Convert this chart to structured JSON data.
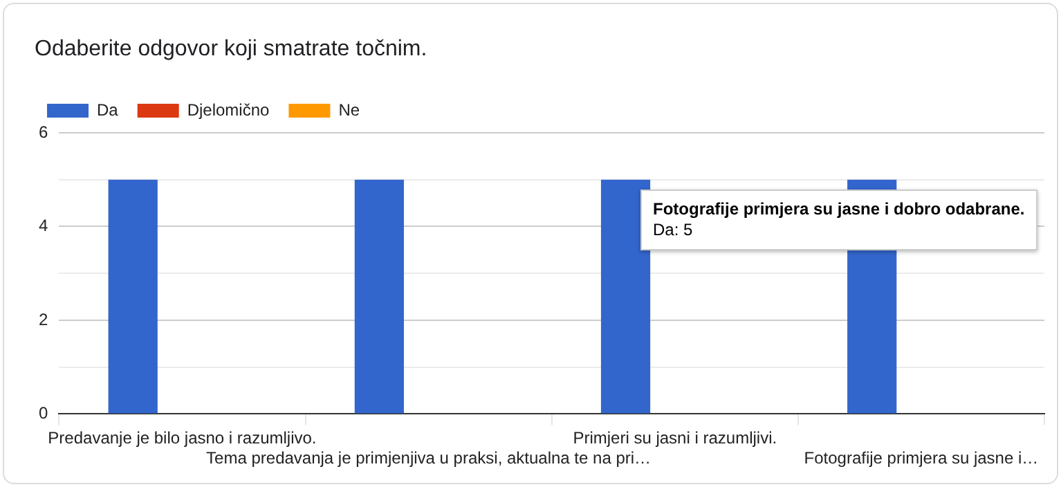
{
  "chart_data": {
    "type": "bar",
    "title": "Odaberite odgovor koji smatrate točnim.",
    "categories": [
      "Predavanje je bilo jasno i razumljivo.",
      "Tema predavanja je primjenjiva u praksi, aktualna te na pri…",
      "Primjeri su jasni i razumljivi.",
      "Fotografije primjera su jasne i…"
    ],
    "series": [
      {
        "name": "Da",
        "color": "#3366cc",
        "values": [
          5,
          5,
          5,
          5
        ]
      },
      {
        "name": "Djelomično",
        "color": "#dc3912",
        "values": [
          0,
          0,
          0,
          0
        ]
      },
      {
        "name": "Ne",
        "color": "#ff9900",
        "values": [
          0,
          0,
          0,
          0
        ]
      }
    ],
    "ylim": [
      0,
      6
    ],
    "yticks": [
      0,
      {
        "value": 1,
        "label": null
      },
      2,
      {
        "value": 3,
        "label": null
      },
      4,
      {
        "value": 5,
        "label": null
      },
      6
    ],
    "grid": true,
    "legend": "top left",
    "annotations": [
      "Fotografije primjera su jasne i dobro odabrane.",
      "Da: 5"
    ]
  }
}
